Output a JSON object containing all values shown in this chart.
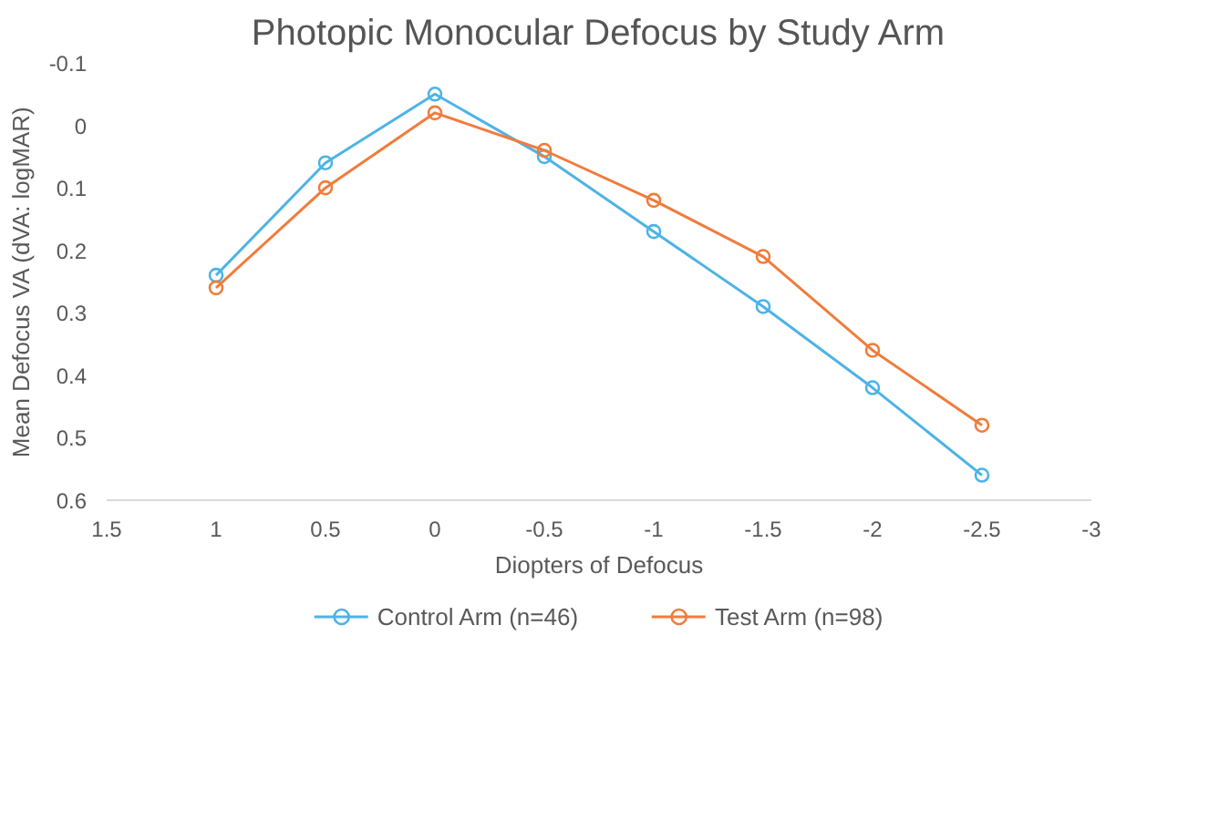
{
  "chart_data": {
    "type": "line",
    "title": "Photopic Monocular Defocus by Study Arm",
    "xlabel": "Diopters of Defocus",
    "ylabel": "Mean Defocus VA (dVA: logMAR)",
    "x": [
      1,
      0.5,
      0,
      -0.5,
      -1,
      -1.5,
      -2,
      -2.5
    ],
    "series": [
      {
        "name": "Control Arm (n=46)",
        "color": "#4db3e6",
        "values": [
          0.24,
          0.06,
          -0.05,
          0.05,
          0.17,
          0.29,
          0.42,
          0.56
        ]
      },
      {
        "name": "Test Arm (n=98)",
        "color": "#f07c3c",
        "values": [
          0.26,
          0.1,
          -0.02,
          0.04,
          0.12,
          0.21,
          0.36,
          0.48
        ]
      }
    ],
    "xlim": [
      1.5,
      -3
    ],
    "xticks": [
      1.5,
      1,
      0.5,
      0,
      -0.5,
      -1,
      -1.5,
      -2,
      -2.5,
      -3
    ],
    "ylim": [
      0.6,
      -0.1
    ],
    "yticks": [
      -0.1,
      0,
      0.1,
      0.2,
      0.3,
      0.4,
      0.5,
      0.6
    ],
    "grid": false,
    "legend": "bottom",
    "marker": "circle",
    "line_style": "solid"
  }
}
